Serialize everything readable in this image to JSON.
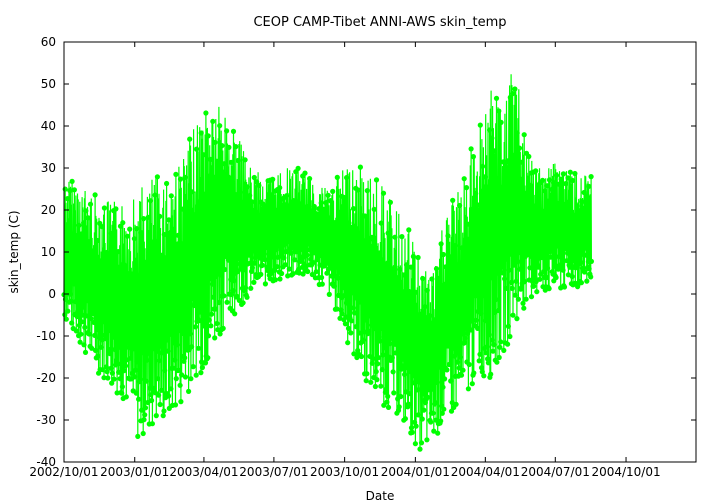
{
  "chart_data": {
    "type": "line",
    "title": "CEOP CAMP-Tibet ANNI-AWS  skin_temp",
    "xlabel": "Date",
    "ylabel": "skin_temp (C)",
    "x_ticks": [
      "2002/10/01",
      "2003/01/01",
      "2003/04/01",
      "2003/07/01",
      "2003/10/01",
      "2004/01/01",
      "2004/04/01",
      "2004/07/01",
      "2004/10/01"
    ],
    "y_ticks": [
      -40,
      -30,
      -20,
      -10,
      0,
      10,
      20,
      30,
      40,
      50,
      60
    ],
    "xlim": [
      "2002/10/01",
      "2004/12/31"
    ],
    "ylim": [
      -40,
      60
    ],
    "grid": false,
    "legend": "none",
    "series_color": "#00ff00",
    "series": [
      {
        "x_start": "2002/10/01",
        "x_end": "2004/08/17",
        "envelope": [
          {
            "date": "2002/10/01",
            "min": -6,
            "max": 28
          },
          {
            "date": "2002/10/20",
            "min": -12,
            "max": 27
          },
          {
            "date": "2002/11/10",
            "min": -18,
            "max": 24
          },
          {
            "date": "2002/12/01",
            "min": -22,
            "max": 22
          },
          {
            "date": "2002/12/20",
            "min": -26,
            "max": 22
          },
          {
            "date": "2003/01/05",
            "min": -35,
            "max": 25
          },
          {
            "date": "2003/01/25",
            "min": -32,
            "max": 28
          },
          {
            "date": "2003/02/15",
            "min": -30,
            "max": 30
          },
          {
            "date": "2003/03/05",
            "min": -26,
            "max": 33
          },
          {
            "date": "2003/03/20",
            "min": -20,
            "max": 40
          },
          {
            "date": "2003/04/05",
            "min": -18,
            "max": 47
          },
          {
            "date": "2003/04/20",
            "min": -10,
            "max": 46
          },
          {
            "date": "2003/05/10",
            "min": -5,
            "max": 40
          },
          {
            "date": "2003/06/01",
            "min": 0,
            "max": 30
          },
          {
            "date": "2003/06/20",
            "min": 2,
            "max": 28
          },
          {
            "date": "2003/07/10",
            "min": 3,
            "max": 30
          },
          {
            "date": "2003/08/01",
            "min": 4,
            "max": 30
          },
          {
            "date": "2003/08/25",
            "min": 3,
            "max": 27
          },
          {
            "date": "2003/09/15",
            "min": -2,
            "max": 26
          },
          {
            "date": "2003/10/05",
            "min": -12,
            "max": 32
          },
          {
            "date": "2003/10/25",
            "min": -20,
            "max": 30
          },
          {
            "date": "2003/11/15",
            "min": -26,
            "max": 27
          },
          {
            "date": "2003/12/05",
            "min": -28,
            "max": 21
          },
          {
            "date": "2003/12/25",
            "min": -34,
            "max": 15
          },
          {
            "date": "2004/01/10",
            "min": -38,
            "max": 8
          },
          {
            "date": "2004/01/25",
            "min": -35,
            "max": 5
          },
          {
            "date": "2004/02/10",
            "min": -30,
            "max": 22
          },
          {
            "date": "2004/03/01",
            "min": -28,
            "max": 25
          },
          {
            "date": "2004/03/20",
            "min": -20,
            "max": 40
          },
          {
            "date": "2004/04/10",
            "min": -20,
            "max": 50
          },
          {
            "date": "2004/04/25",
            "min": -14,
            "max": 46
          },
          {
            "date": "2004/05/10",
            "min": -8,
            "max": 56
          },
          {
            "date": "2004/05/25",
            "min": -2,
            "max": 33
          },
          {
            "date": "2004/06/15",
            "min": 0,
            "max": 31
          },
          {
            "date": "2004/07/05",
            "min": 0,
            "max": 33
          },
          {
            "date": "2004/07/25",
            "min": 1,
            "max": 29
          },
          {
            "date": "2004/08/17",
            "min": 2,
            "max": 28
          }
        ]
      }
    ]
  }
}
